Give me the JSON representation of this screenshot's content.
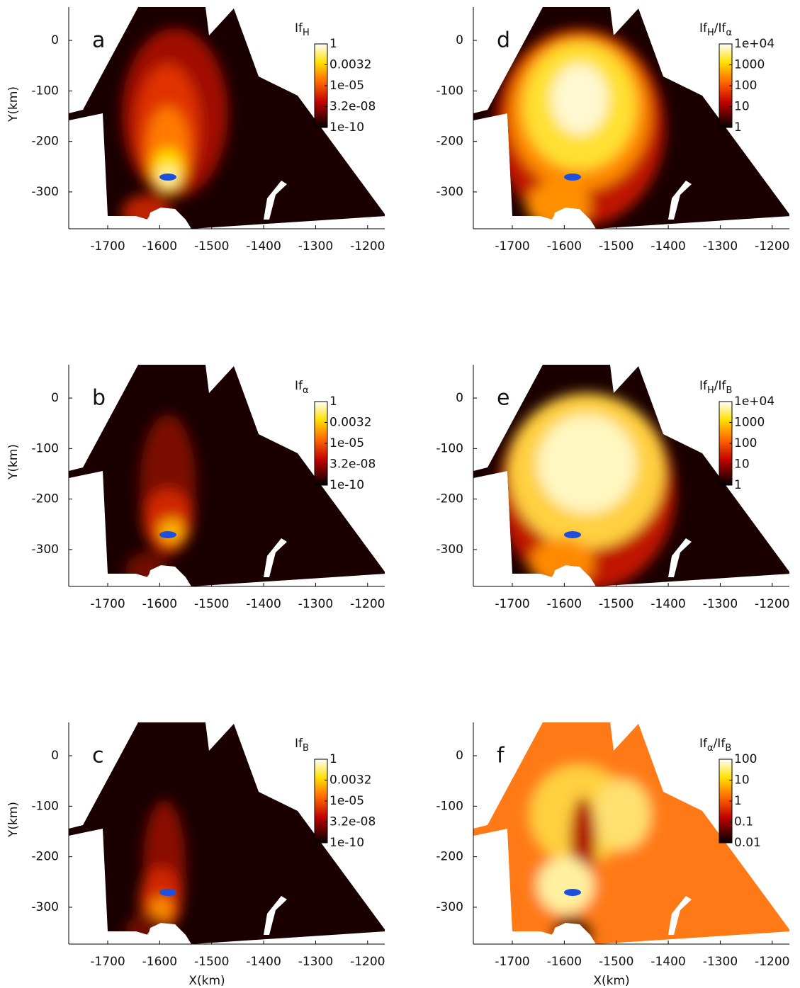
{
  "chart_data": [
    {
      "type": "map",
      "panel_label": "a",
      "ylabel": "Y(km)",
      "colorbar_title": [
        {
          "text": "If"
        },
        {
          "sub": "H"
        }
      ],
      "colorbar_log": true,
      "colorbar_lim": [
        1e-10,
        1
      ],
      "colorbar_ticks": [
        {
          "value": 1e-10,
          "label": "1e-10"
        },
        {
          "value": 3.2e-08,
          "label": "3.2e-08"
        },
        {
          "value": 1e-05,
          "label": "1e-05"
        },
        0.0032,
        1
      ],
      "xlim": [
        -1775,
        -1167
      ],
      "ylim": [
        -373,
        66
      ],
      "xticks": [
        -1700,
        -1600,
        -1500,
        -1400,
        -1300,
        -1200
      ],
      "yticks": [
        0,
        -100,
        -200,
        -300
      ]
    },
    {
      "type": "map",
      "panel_label": "d",
      "colorbar_title": [
        {
          "text": "If"
        },
        {
          "sub": "H"
        },
        {
          "text": "/If"
        },
        {
          "sub": "α"
        }
      ],
      "colorbar_log": true,
      "colorbar_lim": [
        1,
        10000
      ],
      "colorbar_ticks": [
        1,
        10,
        100,
        1000,
        {
          "value": 10000,
          "label": "1e+04"
        }
      ],
      "xlim": [
        -1775,
        -1167
      ],
      "ylim": [
        -373,
        66
      ],
      "xticks": [
        -1700,
        -1600,
        -1500,
        -1400,
        -1300,
        -1200
      ],
      "yticks": [
        0,
        -100,
        -200,
        -300
      ]
    },
    {
      "type": "map",
      "panel_label": "b",
      "ylabel": "Y(km)",
      "colorbar_title": [
        {
          "text": "If"
        },
        {
          "sub": "α"
        }
      ],
      "colorbar_log": true,
      "colorbar_lim": [
        1e-10,
        1
      ],
      "colorbar_ticks": [
        {
          "value": 1e-10,
          "label": "1e-10"
        },
        {
          "value": 3.2e-08,
          "label": "3.2e-08"
        },
        {
          "value": 1e-05,
          "label": "1e-05"
        },
        0.0032,
        1
      ],
      "xlim": [
        -1775,
        -1167
      ],
      "ylim": [
        -373,
        66
      ],
      "xticks": [
        -1700,
        -1600,
        -1500,
        -1400,
        -1300,
        -1200
      ],
      "yticks": [
        0,
        -100,
        -200,
        -300
      ]
    },
    {
      "type": "map",
      "panel_label": "e",
      "colorbar_title": [
        {
          "text": "If"
        },
        {
          "sub": "H"
        },
        {
          "text": "/If"
        },
        {
          "sub": "B"
        }
      ],
      "colorbar_log": true,
      "colorbar_lim": [
        1,
        10000
      ],
      "colorbar_ticks": [
        1,
        10,
        100,
        1000,
        {
          "value": 10000,
          "label": "1e+04"
        }
      ],
      "xlim": [
        -1775,
        -1167
      ],
      "ylim": [
        -373,
        66
      ],
      "xticks": [
        -1700,
        -1600,
        -1500,
        -1400,
        -1300,
        -1200
      ],
      "yticks": [
        0,
        -100,
        -200,
        -300
      ]
    },
    {
      "type": "map",
      "panel_label": "c",
      "ylabel": "Y(km)",
      "xlabel": "X(km)",
      "colorbar_title": [
        {
          "text": "If"
        },
        {
          "sub": "B"
        }
      ],
      "colorbar_log": true,
      "colorbar_lim": [
        1e-10,
        1
      ],
      "colorbar_ticks": [
        {
          "value": 1e-10,
          "label": "1e-10"
        },
        {
          "value": 3.2e-08,
          "label": "3.2e-08"
        },
        {
          "value": 1e-05,
          "label": "1e-05"
        },
        0.0032,
        1
      ],
      "xlim": [
        -1775,
        -1167
      ],
      "ylim": [
        -373,
        66
      ],
      "xticks": [
        -1700,
        -1600,
        -1500,
        -1400,
        -1300,
        -1200
      ],
      "yticks": [
        0,
        -100,
        -200,
        -300
      ]
    },
    {
      "type": "map",
      "panel_label": "f",
      "xlabel": "X(km)",
      "colorbar_title": [
        {
          "text": "If"
        },
        {
          "sub": "α"
        },
        {
          "text": "/If"
        },
        {
          "sub": "B"
        }
      ],
      "colorbar_log": true,
      "colorbar_lim": [
        0.01,
        100
      ],
      "colorbar_ticks": [
        0.01,
        0.1,
        1,
        10,
        100
      ],
      "xlim": [
        -1775,
        -1167
      ],
      "ylim": [
        -373,
        66
      ],
      "xticks": [
        -1700,
        -1600,
        -1500,
        -1400,
        -1300,
        -1200
      ],
      "yticks": [
        0,
        -100,
        -200,
        -300
      ]
    }
  ]
}
